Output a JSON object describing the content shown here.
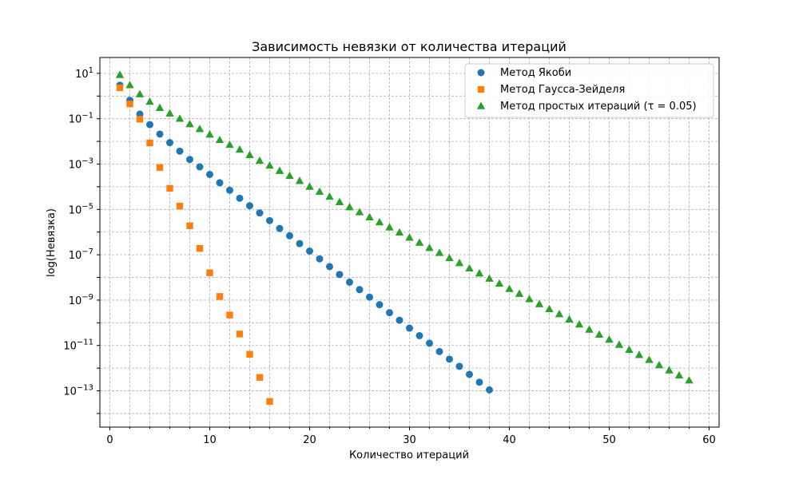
{
  "chart_data": {
    "type": "scatter",
    "title": "Зависимость невязки от количества итераций",
    "xlabel": "Количество итераций",
    "ylabel": "log(Невязка)",
    "xlim": [
      -1,
      61
    ],
    "ylim_log10": [
      -14.6,
      1.7
    ],
    "yscale": "log",
    "grid": true,
    "legend_position": "top-right",
    "x_ticks": [
      0,
      10,
      20,
      30,
      40,
      50,
      60
    ],
    "y_ticks": [
      {
        "exp": 1,
        "base": "10",
        "sup": "1"
      },
      {
        "exp": -1,
        "base": "10",
        "sup": "−1"
      },
      {
        "exp": -3,
        "base": "10",
        "sup": "−3"
      },
      {
        "exp": -5,
        "base": "10",
        "sup": "−5"
      },
      {
        "exp": -7,
        "base": "10",
        "sup": "−7"
      },
      {
        "exp": -9,
        "base": "10",
        "sup": "−9"
      },
      {
        "exp": -11,
        "base": "10",
        "sup": "−11"
      },
      {
        "exp": -13,
        "base": "10",
        "sup": "−13"
      }
    ],
    "series": [
      {
        "name": "Метод Якоби",
        "marker": "circle",
        "color": "#1f77b4",
        "x": [
          1,
          2,
          3,
          4,
          5,
          6,
          7,
          8,
          9,
          10,
          11,
          12,
          13,
          14,
          15,
          16,
          17,
          18,
          19,
          20,
          21,
          22,
          23,
          24,
          25,
          26,
          27,
          28,
          29,
          30,
          31,
          32,
          33,
          34,
          35,
          36,
          37,
          38
        ],
        "y": [
          3.0,
          0.65,
          0.16,
          0.055,
          0.021,
          0.0088,
          0.0037,
          0.0016,
          0.00075,
          0.00035,
          0.00015,
          7e-05,
          3.1e-05,
          1.45e-05,
          7e-06,
          3.2e-06,
          1.45e-06,
          6.9e-07,
          3.1e-07,
          1.45e-07,
          6.6e-08,
          3e-08,
          1.35e-08,
          6.2e-09,
          2.9e-09,
          1.35e-09,
          6.3e-10,
          2.8e-10,
          1.3e-10,
          5.8e-11,
          2.7e-11,
          1.26e-11,
          5.4e-12,
          2.5e-12,
          1.2e-12,
          5.3e-13,
          2.4e-13,
          1.1e-13
        ]
      },
      {
        "name": "Метод Гаусса-Зейделя",
        "marker": "square",
        "color": "#ff7f0e",
        "x": [
          1,
          2,
          3,
          4,
          5,
          6,
          7,
          8,
          9,
          10,
          11,
          12,
          13,
          14,
          15,
          16
        ],
        "y": [
          2.3,
          0.45,
          0.095,
          0.0085,
          0.0007,
          8.5e-05,
          1.4e-05,
          1.9e-06,
          1.9e-07,
          1.6e-08,
          1.45e-09,
          2.2e-10,
          3.2e-11,
          4.1e-12,
          3.9e-13,
          3.4e-14
        ]
      },
      {
        "name": "Метод простых итераций (τ = 0.05)",
        "marker": "triangle",
        "color": "#2ca02c",
        "x": [
          1,
          2,
          3,
          4,
          5,
          6,
          7,
          8,
          9,
          10,
          11,
          12,
          13,
          14,
          15,
          16,
          17,
          18,
          19,
          20,
          21,
          22,
          23,
          24,
          25,
          26,
          27,
          28,
          29,
          30,
          31,
          32,
          33,
          34,
          35,
          36,
          37,
          38,
          39,
          40,
          41,
          42,
          43,
          44,
          45,
          46,
          47,
          48,
          49,
          50,
          51,
          52,
          53,
          54,
          55,
          56,
          57,
          58
        ],
        "y": [
          8.5,
          3.0,
          1.2,
          0.56,
          0.3,
          0.17,
          0.1,
          0.057,
          0.035,
          0.02,
          0.0115,
          0.007,
          0.0043,
          0.0025,
          0.0014,
          0.00085,
          0.0005,
          0.0003,
          0.00018,
          0.0001,
          6e-05,
          3.6e-05,
          2.1e-05,
          1.25e-05,
          7.5e-06,
          4.5e-06,
          2.7e-06,
          1.6e-06,
          9.6e-07,
          5.7e-07,
          3.4e-07,
          2e-07,
          1.2e-07,
          7.1e-08,
          4.3e-08,
          2.5e-08,
          1.5e-08,
          8.8e-09,
          5.3e-09,
          3.1e-09,
          1.9e-09,
          1.1e-09,
          6.6e-10,
          4e-10,
          2.4e-10,
          1.4e-10,
          8.4e-11,
          5e-11,
          3e-11,
          1.8e-11,
          1.07e-11,
          6.4e-12,
          3.8e-12,
          2.3e-12,
          1.35e-12,
          8e-13,
          4.8e-13,
          2.85e-13
        ]
      }
    ]
  }
}
